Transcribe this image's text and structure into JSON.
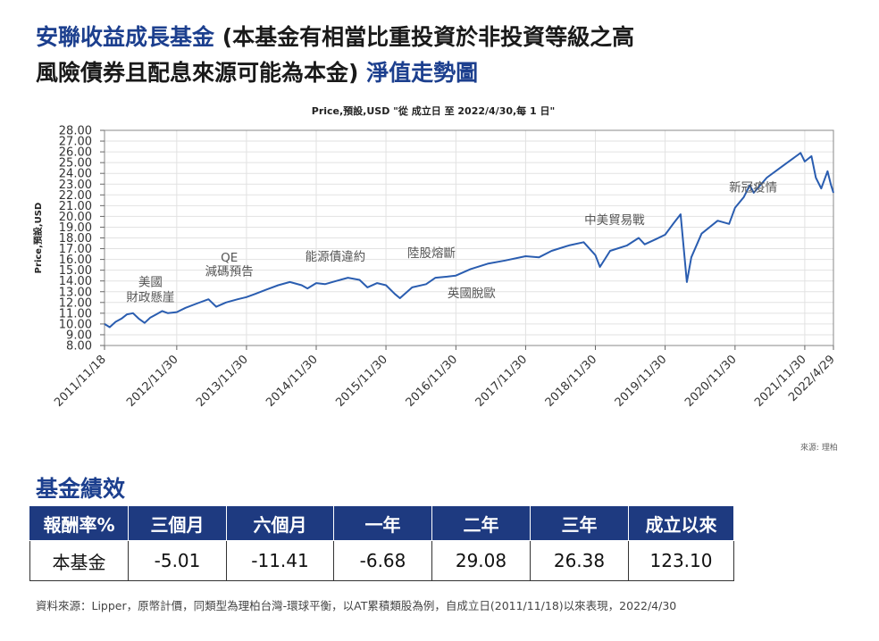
{
  "title": {
    "line1_prefix": "安聯收益成長基金",
    "line1_rest": " (本基金有相當比重投資於非投資等級之高",
    "line2_rest": "風險債券且配息來源可能為本金) ",
    "line2_suffix": "淨值走勢圖"
  },
  "chart_data": {
    "type": "line",
    "title": "Price,預設,USD \"從 成立日 至 2022/4/30,每 1 日\"",
    "ylabel": "Price,預設,USD",
    "xlabel": "",
    "ylim": [
      8,
      28
    ],
    "yticks": [
      "8.00",
      "9.00",
      "10.00",
      "11.00",
      "12.00",
      "13.00",
      "14.00",
      "15.00",
      "16.00",
      "17.00",
      "18.00",
      "19.00",
      "20.00",
      "21.00",
      "22.00",
      "23.00",
      "24.00",
      "25.00",
      "26.00",
      "27.00",
      "28.00"
    ],
    "xlim": [
      "2011-11-18",
      "2022-04-29"
    ],
    "xticks": [
      {
        "date": "2011-11-18",
        "label": "2011/11/18"
      },
      {
        "date": "2012-11-30",
        "label": "2012/11/30"
      },
      {
        "date": "2013-11-30",
        "label": "2013/11/30"
      },
      {
        "date": "2014-11-30",
        "label": "2014/11/30"
      },
      {
        "date": "2015-11-30",
        "label": "2015/11/30"
      },
      {
        "date": "2016-11-30",
        "label": "2016/11/30"
      },
      {
        "date": "2017-11-30",
        "label": "2017/11/30"
      },
      {
        "date": "2018-11-30",
        "label": "2018/11/30"
      },
      {
        "date": "2019-11-30",
        "label": "2019/11/30"
      },
      {
        "date": "2020-11-30",
        "label": "2020/11/30"
      },
      {
        "date": "2021-11-30",
        "label": "2021/11/30"
      },
      {
        "date": "2022-04-29",
        "label": "2022/4/29"
      }
    ],
    "grid": true,
    "series": [
      {
        "color": "#2a5db0",
        "points": [
          [
            "2011-11-18",
            10.0
          ],
          [
            "2011-12-15",
            9.7
          ],
          [
            "2012-01-15",
            10.2
          ],
          [
            "2012-02-15",
            10.5
          ],
          [
            "2012-03-15",
            10.9
          ],
          [
            "2012-04-15",
            11.0
          ],
          [
            "2012-05-15",
            10.5
          ],
          [
            "2012-06-15",
            10.1
          ],
          [
            "2012-07-15",
            10.6
          ],
          [
            "2012-08-15",
            10.9
          ],
          [
            "2012-09-15",
            11.2
          ],
          [
            "2012-10-15",
            11.0
          ],
          [
            "2012-11-30",
            11.1
          ],
          [
            "2013-01-15",
            11.5
          ],
          [
            "2013-03-15",
            11.9
          ],
          [
            "2013-05-15",
            12.3
          ],
          [
            "2013-06-25",
            11.6
          ],
          [
            "2013-08-15",
            12.0
          ],
          [
            "2013-10-15",
            12.3
          ],
          [
            "2013-11-30",
            12.5
          ],
          [
            "2014-01-15",
            12.8
          ],
          [
            "2014-03-15",
            13.2
          ],
          [
            "2014-05-15",
            13.6
          ],
          [
            "2014-07-15",
            13.9
          ],
          [
            "2014-09-15",
            13.6
          ],
          [
            "2014-10-15",
            13.3
          ],
          [
            "2014-11-30",
            13.8
          ],
          [
            "2015-01-15",
            13.7
          ],
          [
            "2015-03-15",
            14.0
          ],
          [
            "2015-05-15",
            14.3
          ],
          [
            "2015-07-15",
            14.1
          ],
          [
            "2015-08-25",
            13.4
          ],
          [
            "2015-10-15",
            13.8
          ],
          [
            "2015-11-30",
            13.6
          ],
          [
            "2016-01-15",
            12.8
          ],
          [
            "2016-02-11",
            12.4
          ],
          [
            "2016-04-15",
            13.4
          ],
          [
            "2016-06-27",
            13.7
          ],
          [
            "2016-08-15",
            14.3
          ],
          [
            "2016-10-15",
            14.4
          ],
          [
            "2016-11-30",
            14.5
          ],
          [
            "2017-02-15",
            15.1
          ],
          [
            "2017-05-15",
            15.6
          ],
          [
            "2017-08-15",
            15.9
          ],
          [
            "2017-11-30",
            16.3
          ],
          [
            "2018-02-08",
            16.2
          ],
          [
            "2018-04-15",
            16.8
          ],
          [
            "2018-07-15",
            17.3
          ],
          [
            "2018-09-30",
            17.6
          ],
          [
            "2018-11-30",
            16.4
          ],
          [
            "2018-12-24",
            15.3
          ],
          [
            "2019-02-15",
            16.8
          ],
          [
            "2019-05-15",
            17.3
          ],
          [
            "2019-07-15",
            18.0
          ],
          [
            "2019-08-15",
            17.4
          ],
          [
            "2019-10-15",
            17.9
          ],
          [
            "2019-11-30",
            18.3
          ],
          [
            "2020-01-15",
            19.4
          ],
          [
            "2020-02-19",
            20.2
          ],
          [
            "2020-03-23",
            13.9
          ],
          [
            "2020-04-15",
            16.2
          ],
          [
            "2020-06-08",
            18.4
          ],
          [
            "2020-08-31",
            19.6
          ],
          [
            "2020-10-30",
            19.3
          ],
          [
            "2020-11-30",
            20.8
          ],
          [
            "2021-01-15",
            21.8
          ],
          [
            "2021-02-15",
            22.9
          ],
          [
            "2021-03-08",
            22.2
          ],
          [
            "2021-05-15",
            23.6
          ],
          [
            "2021-07-15",
            24.4
          ],
          [
            "2021-09-15",
            25.2
          ],
          [
            "2021-11-08",
            25.9
          ],
          [
            "2021-11-30",
            25.1
          ],
          [
            "2022-01-04",
            25.6
          ],
          [
            "2022-01-27",
            23.6
          ],
          [
            "2022-02-24",
            22.6
          ],
          [
            "2022-03-29",
            24.2
          ],
          [
            "2022-04-15",
            23.0
          ],
          [
            "2022-04-29",
            22.2
          ]
        ]
      }
    ],
    "annotations": [
      {
        "text": "美國",
        "date": "2012-07-15",
        "y": 13.5
      },
      {
        "text": "財政懸崖",
        "date": "2012-07-15",
        "y": 12.1
      },
      {
        "text": "QE",
        "date": "2013-09-01",
        "y": 15.8
      },
      {
        "text": "減碼預告",
        "date": "2013-09-01",
        "y": 14.5
      },
      {
        "text": "能源債違約",
        "date": "2015-03-10",
        "y": 15.9
      },
      {
        "text": "陸股熔斷",
        "date": "2016-07-25",
        "y": 16.2
      },
      {
        "text": "英國脫歐",
        "date": "2017-02-20",
        "y": 12.5
      },
      {
        "text": "中美貿易戰",
        "date": "2019-03-10",
        "y": 19.3
      },
      {
        "text": "新冠疫情",
        "date": "2021-03-05",
        "y": 22.3
      }
    ]
  },
  "source_note": "來源: 理柏",
  "performance": {
    "section_title": "基金績效",
    "headers": [
      "報酬率%",
      "三個月",
      "六個月",
      "一年",
      "二年",
      "三年",
      "成立以來"
    ],
    "row_label": "本基金",
    "values": [
      "-5.01",
      "-11.41",
      "-6.68",
      "29.08",
      "26.38",
      "123.10"
    ]
  },
  "footnote": "資料來源：Lipper，原幣計價，同類型為理柏台灣-環球平衡，以AT累積類股為例，自成立日(2011/11/18)以來表現，2022/4/30",
  "colors": {
    "brand_blue": "#1c3f8e",
    "table_header": "#1e3a80",
    "line": "#2a5db0"
  }
}
